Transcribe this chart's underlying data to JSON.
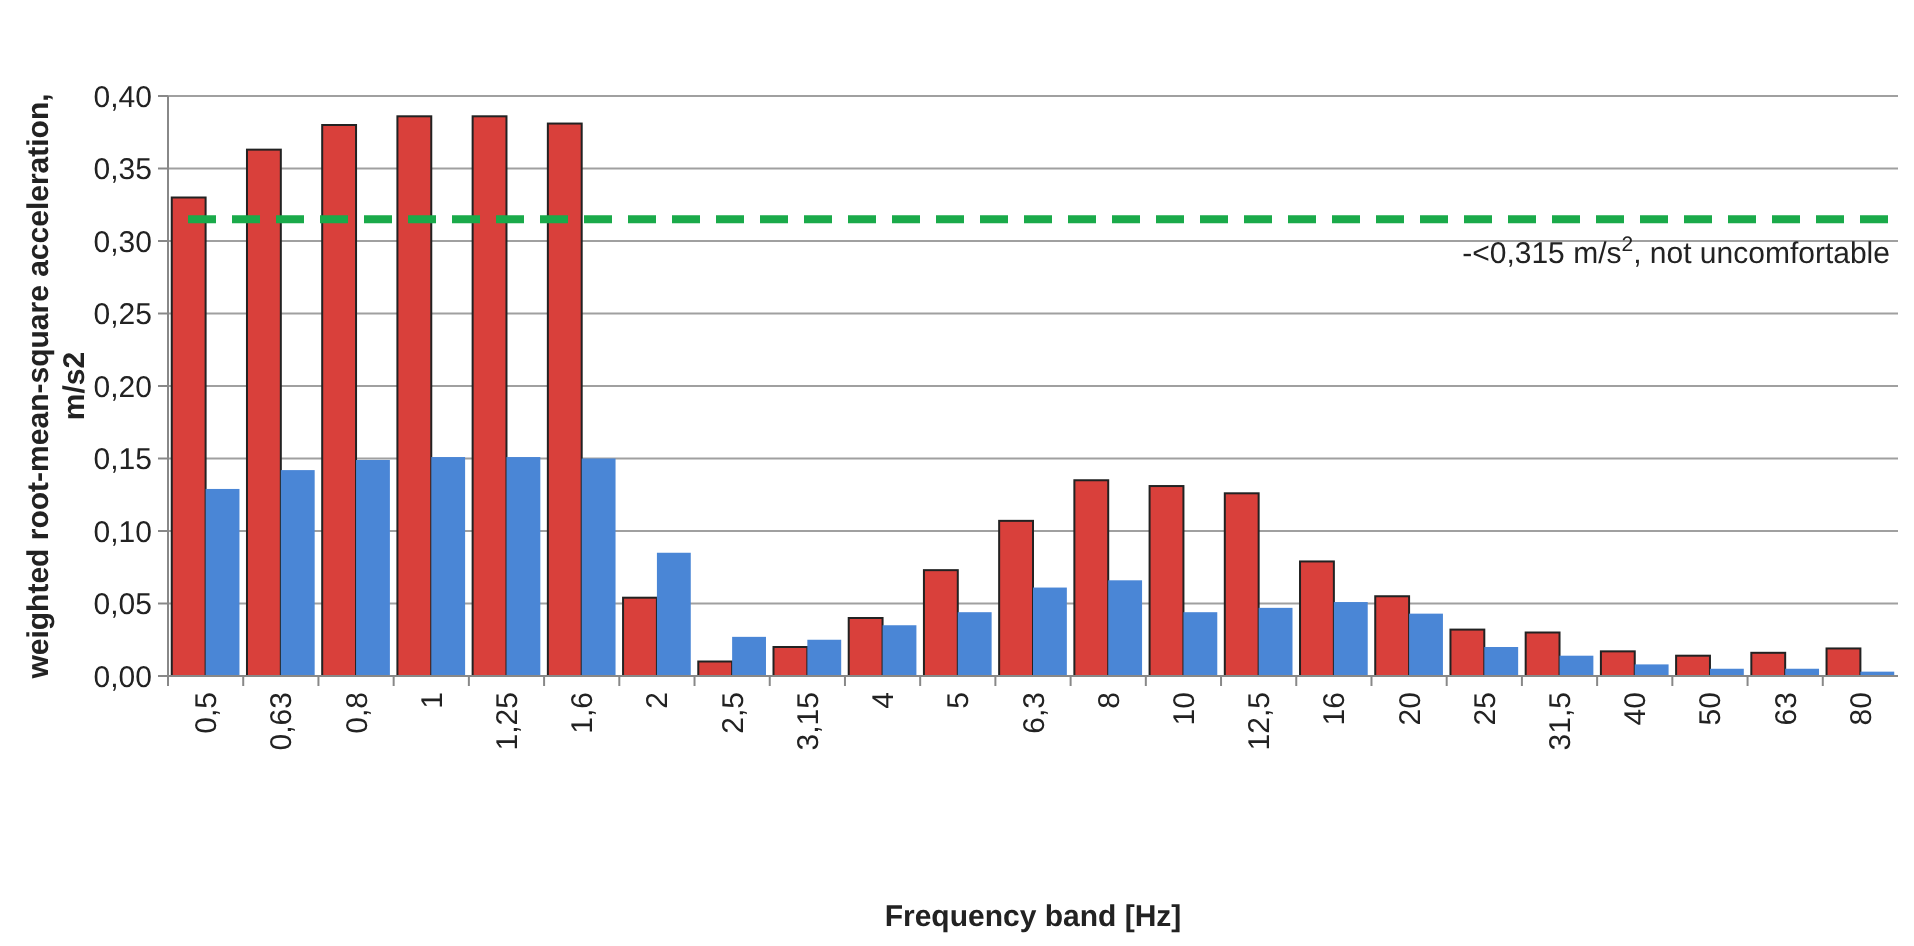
{
  "chart_data": {
    "type": "bar",
    "xlabel": "Frequency band [Hz]",
    "ylabel": "weighted root-mean-square acceleration, m/s2",
    "categories": [
      "0,5",
      "0,63",
      "0,8",
      "1",
      "1,25",
      "1,6",
      "2",
      "2,5",
      "3,15",
      "4",
      "5",
      "6,3",
      "8",
      "10",
      "12,5",
      "16",
      "20",
      "25",
      "31,5",
      "40",
      "50",
      "63",
      "80"
    ],
    "series": [
      {
        "color": "#d9403b",
        "values": [
          0.33,
          0.363,
          0.38,
          0.386,
          0.386,
          0.381,
          0.054,
          0.01,
          0.02,
          0.04,
          0.073,
          0.107,
          0.135,
          0.131,
          0.126,
          0.079,
          0.055,
          0.032,
          0.03,
          0.017,
          0.014,
          0.016,
          0.019
        ]
      },
      {
        "color": "#4a86d6",
        "values": [
          0.129,
          0.142,
          0.149,
          0.151,
          0.151,
          0.15,
          0.085,
          0.027,
          0.025,
          0.035,
          0.044,
          0.061,
          0.066,
          0.044,
          0.047,
          0.051,
          0.043,
          0.02,
          0.014,
          0.008,
          0.005,
          0.005,
          0.003
        ]
      }
    ],
    "ylim": [
      0,
      0.4
    ],
    "yticks": [
      {
        "value": 0,
        "label": "0,00"
      },
      {
        "value": 0.05,
        "label": "0,05"
      },
      {
        "value": 0.1,
        "label": "0,10"
      },
      {
        "value": 0.15,
        "label": "0,15"
      },
      {
        "value": 0.2,
        "label": "0,20"
      },
      {
        "value": 0.25,
        "label": "0,25"
      },
      {
        "value": 0.3,
        "label": "0,30"
      },
      {
        "value": 0.35,
        "label": "0,35"
      },
      {
        "value": 0.4,
        "label": "0,40"
      }
    ],
    "grid": "y",
    "ref_lines": [
      {
        "axis": "y",
        "value": 0.315,
        "label": "-<0,315 m/s$^{2}$, not uncomfortable",
        "color": "#1aaa4a",
        "line_style": "dashed"
      }
    ]
  }
}
